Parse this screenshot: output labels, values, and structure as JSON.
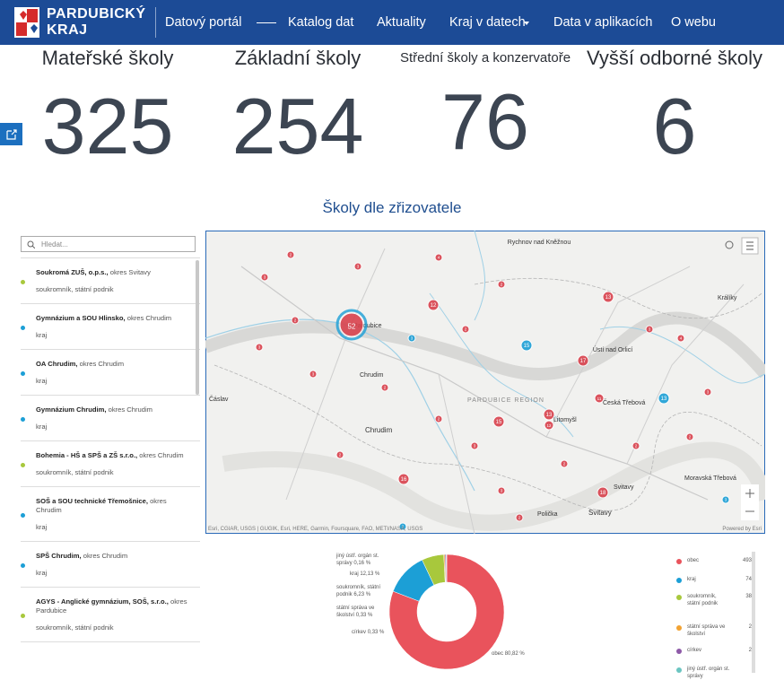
{
  "header": {
    "logo": [
      "PARDUBICKÝ",
      "KRAJ"
    ],
    "nav": [
      "Datový portál",
      "Katalog dat",
      "Aktuality",
      "Kraj v datech",
      "Data v aplikacích",
      "O webu"
    ]
  },
  "stats": [
    {
      "label": "Mateřské školy",
      "value": 325
    },
    {
      "label": "Základní školy",
      "value": 254
    },
    {
      "label": "Střední školy a konzervatoře",
      "value": 76
    },
    {
      "label": "Vyšší odborné školy",
      "value": 6
    }
  ],
  "section_title": "Školy dle zřizovatele",
  "search_placeholder": "Hledat...",
  "list": [
    {
      "name": "Soukromá ZUŠ, o.p.s.,",
      "district": "okres Svitavy",
      "founder": "soukromník, státní podnik",
      "kind": "private"
    },
    {
      "name": "Gymnázium a SOU Hlinsko,",
      "district": "okres Chrudim",
      "founder": "kraj",
      "kind": "region"
    },
    {
      "name": "OA Chrudim,",
      "district": "okres Chrudim",
      "founder": "kraj",
      "kind": "region"
    },
    {
      "name": "Gymnázium Chrudim,",
      "district": "okres Chrudim",
      "founder": "kraj",
      "kind": "region"
    },
    {
      "name": "Bohemia - HŠ a SPŠ a ZŠ s.r.o.,",
      "district": "okres Chrudim",
      "founder": "soukromník, státní podnik",
      "kind": "private"
    },
    {
      "name": "SOŠ a SOU technické Třemošnice,",
      "district": "okres Chrudim",
      "founder": "kraj",
      "kind": "region"
    },
    {
      "name": "SPŠ Chrudim,",
      "district": "okres Chrudim",
      "founder": "kraj",
      "kind": "region"
    },
    {
      "name": "AGYS - Anglické gymnázium, SOŠ, s.r.o.,",
      "district": "okres Pardubice",
      "founder": "soukromník, státní podnik",
      "kind": "private"
    }
  ],
  "map": {
    "places": [
      "Rychnov nad Kněžnou",
      "Pardubice",
      "Chrudim",
      "Chrudim",
      "Čáslav",
      "PARDUBICE REGION",
      "Ústí nad Orlicí",
      "Česká Třebová",
      "Litomyšl",
      "Svitavy",
      "Svitavy",
      "Polička",
      "Moravská Třebová",
      "Králíky"
    ],
    "markers": [
      "52",
      "12",
      "13",
      "15",
      "15",
      "17",
      "18",
      "13",
      "12",
      "11",
      "13",
      "16",
      "3",
      "2",
      "3",
      "4",
      "2",
      "3",
      "2",
      "3",
      "2",
      "2",
      "3",
      "2",
      "2",
      "3",
      "2",
      "2",
      "4",
      "3",
      "2",
      "3",
      "2",
      "3",
      "2",
      "3"
    ],
    "attribution": "Esri, CGIAR, USGS | GUGIK, Esri, HERE, Garmin, Foursquare, FAO, METI/NASA, USGS",
    "powered": "Powered by Esri"
  },
  "donut": {
    "slices": [
      {
        "name": "obec",
        "count": 493,
        "percent": 80.82,
        "percent_label": "80,82 %",
        "color": "#e9535c"
      },
      {
        "name": "kraj",
        "count": 74,
        "percent": 12.13,
        "percent_label": "12,13 %",
        "color": "#1c9fd6"
      },
      {
        "name": "soukromník, státní podnik",
        "count": 38,
        "percent": 6.23,
        "percent_label": "6,23 %",
        "color": "#a8c83c"
      },
      {
        "name": "státní správa ve školství",
        "count": 2,
        "percent": 0.33,
        "percent_label": "0,33 %",
        "color": "#f2a232"
      },
      {
        "name": "církev",
        "count": 2,
        "percent": 0.33,
        "percent_label": "0,33 %",
        "color": "#8e5aa8"
      },
      {
        "name": "jiný ústř. orgán st. správy",
        "percent": 0.16,
        "percent_label": "0,16 %",
        "color": "#6bc5c1"
      }
    ]
  }
}
